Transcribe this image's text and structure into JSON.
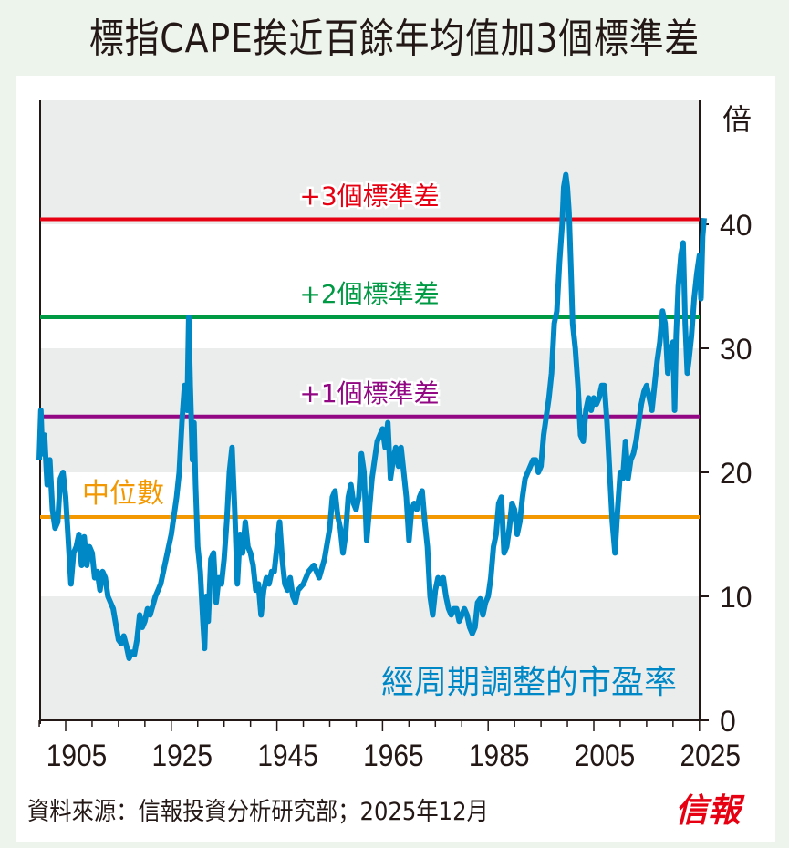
{
  "title": "標指CAPE挨近百餘年均值加3個標準差",
  "source": "資料來源：信報投資分析研究部；2025年12月",
  "logo": "信報",
  "chart_data": {
    "type": "line",
    "title": "標指CAPE挨近百餘年均值加3個標準差",
    "ylabel": "倍",
    "xlim": [
      1900,
      2025.9
    ],
    "ylim": [
      0,
      47
    ],
    "yticks": [
      0,
      10,
      20,
      30,
      40
    ],
    "xticks": [
      1905,
      1925,
      1945,
      1965,
      1985,
      2005,
      2025
    ],
    "grid": "alternating horizontal bands",
    "series": [
      {
        "name": "經周期調整的市盈率",
        "color": "#0088c6",
        "x": [
          1900,
          1900.3,
          1900.6,
          1901,
          1901.5,
          1902,
          1902.5,
          1903,
          1903.5,
          1904,
          1904.5,
          1905,
          1905.5,
          1906,
          1906.5,
          1907,
          1907.5,
          1908,
          1908.5,
          1909,
          1909.5,
          1910,
          1910.5,
          1911,
          1911.5,
          1912,
          1912.5,
          1913,
          1914,
          1915,
          1915.5,
          1916,
          1916.5,
          1917,
          1917.5,
          1918,
          1918.5,
          1919,
          1919.5,
          1920,
          1920.5,
          1921,
          1922,
          1923,
          1924,
          1925,
          1926,
          1926.5,
          1927,
          1927.5,
          1928,
          1928.3,
          1928.6,
          1929,
          1929.3,
          1929.6,
          1930,
          1930.5,
          1931,
          1931.3,
          1931.6,
          1932,
          1932.5,
          1933,
          1933.5,
          1934,
          1934.5,
          1935,
          1935.5,
          1936,
          1936.5,
          1937,
          1937.5,
          1938,
          1938.5,
          1939,
          1939.5,
          1940,
          1940.5,
          1941,
          1941.5,
          1942,
          1942.5,
          1943,
          1943.5,
          1944,
          1944.5,
          1945,
          1945.5,
          1946,
          1946.5,
          1947,
          1947.5,
          1948,
          1948.5,
          1949,
          1950,
          1951,
          1952,
          1953,
          1954,
          1955,
          1955.5,
          1956,
          1956.5,
          1957,
          1957.5,
          1958,
          1958.5,
          1959,
          1959.5,
          1960,
          1960.5,
          1961,
          1961.5,
          1962,
          1962.5,
          1963,
          1963.5,
          1964,
          1964.5,
          1965,
          1965.5,
          1966,
          1966.5,
          1967,
          1967.5,
          1968,
          1968.5,
          1969,
          1969.5,
          1970,
          1970.5,
          1971,
          1971.5,
          1972,
          1972.5,
          1973,
          1973.5,
          1974,
          1974.5,
          1975,
          1975.5,
          1976,
          1976.5,
          1977,
          1977.5,
          1978,
          1978.5,
          1979,
          1979.5,
          1980,
          1980.5,
          1981,
          1981.5,
          1982,
          1982.5,
          1983,
          1983.5,
          1984,
          1984.5,
          1985,
          1985.5,
          1986,
          1986.5,
          1987,
          1987.5,
          1988,
          1988.5,
          1989,
          1989.5,
          1990,
          1990.5,
          1991,
          1991.5,
          1992,
          1992.5,
          1993,
          1993.5,
          1994,
          1994.5,
          1995,
          1995.5,
          1996,
          1996.5,
          1997,
          1997.5,
          1998,
          1998.5,
          1999,
          1999.3,
          1999.7,
          2000,
          2000.3,
          2000.7,
          2001,
          2001.5,
          2002,
          2002.5,
          2003,
          2003.5,
          2004,
          2004.5,
          2005,
          2005.5,
          2006,
          2006.5,
          2007,
          2007.5,
          2008,
          2008.5,
          2009,
          2009.5,
          2010,
          2010.5,
          2011,
          2011.5,
          2012,
          2012.5,
          2013,
          2013.5,
          2014,
          2014.5,
          2015,
          2015.5,
          2016,
          2016.5,
          2017,
          2017.5,
          2018,
          2018.5,
          2019,
          2019.5,
          2020,
          2020.3,
          2020.6,
          2021,
          2021.5,
          2021.9,
          2022.3,
          2022.7,
          2023,
          2023.5,
          2024,
          2024.5,
          2025,
          2025.3,
          2025.6,
          2025.9
        ],
        "values": [
          21,
          25,
          21.5,
          23,
          19,
          21,
          17,
          15.5,
          16,
          19.5,
          20,
          18,
          14.5,
          11,
          13.5,
          14,
          15,
          12.5,
          14.8,
          12.5,
          14,
          13.5,
          11.5,
          12,
          10.5,
          12,
          11.5,
          10,
          9,
          6.5,
          6.2,
          6.8,
          6,
          5,
          5.5,
          5.3,
          6.5,
          8.5,
          7.5,
          8,
          9,
          8.5,
          10,
          11,
          13,
          15,
          18,
          20,
          24,
          27,
          25,
          32.5,
          27,
          21,
          24,
          19,
          14,
          12,
          8,
          5.8,
          10,
          8,
          13,
          13.5,
          9.5,
          11.5,
          11,
          13,
          16,
          20,
          22,
          17,
          11,
          15,
          13.5,
          16,
          14,
          13.5,
          12.5,
          10.5,
          11,
          8.5,
          10.5,
          11.5,
          11,
          12,
          12,
          14,
          16,
          13,
          11,
          10.5,
          11.5,
          10,
          9.5,
          10.5,
          11,
          12,
          12.5,
          11.5,
          13,
          15.5,
          18,
          18.5,
          16.5,
          15.5,
          13.5,
          15,
          18,
          19,
          17.5,
          17,
          18,
          21.5,
          20,
          14.5,
          17,
          19.5,
          21,
          22.5,
          23,
          23.5,
          22,
          24,
          19.5,
          21,
          22,
          20.5,
          22,
          20,
          18,
          14.5,
          17,
          17.5,
          17,
          18,
          18.5,
          16,
          14,
          10,
          8.5,
          10.5,
          11.5,
          11,
          11.5,
          10,
          9,
          8.5,
          9,
          9,
          8,
          8.5,
          9,
          8.5,
          7.5,
          7,
          7.5,
          9.5,
          9.8,
          8.5,
          9.5,
          10,
          11.5,
          14,
          15,
          17.5,
          18,
          13.5,
          14,
          15.5,
          17.5,
          17,
          15,
          16,
          18,
          19.5,
          20,
          20.5,
          21,
          21,
          20,
          20.5,
          23,
          24.5,
          26,
          28,
          32,
          33,
          37,
          40,
          43,
          44,
          43,
          41,
          36,
          32,
          30,
          27,
          23,
          22.5,
          25,
          26,
          25,
          26,
          25.5,
          26,
          27,
          27,
          24,
          20,
          16,
          13.5,
          17,
          20,
          19.5,
          22.5,
          19.5,
          21,
          21.5,
          22.5,
          24,
          25.5,
          26.5,
          27,
          26,
          25,
          27,
          29,
          30.5,
          33,
          32,
          28,
          30,
          30.5,
          25,
          31,
          35,
          37.5,
          38.5,
          32,
          28,
          29,
          31,
          34,
          36,
          37.5,
          34,
          39,
          40.5
        ]
      }
    ],
    "reference_lines": [
      {
        "label": "+3個標準差",
        "value": 40.4,
        "color": "#e60012"
      },
      {
        "label": "+2個標準差",
        "value": 32.5,
        "color": "#009a44"
      },
      {
        "label": "+1個標準差",
        "value": 24.5,
        "color": "#920783"
      },
      {
        "label": "中位數",
        "value": 16.4,
        "color": "#f39800"
      }
    ]
  }
}
